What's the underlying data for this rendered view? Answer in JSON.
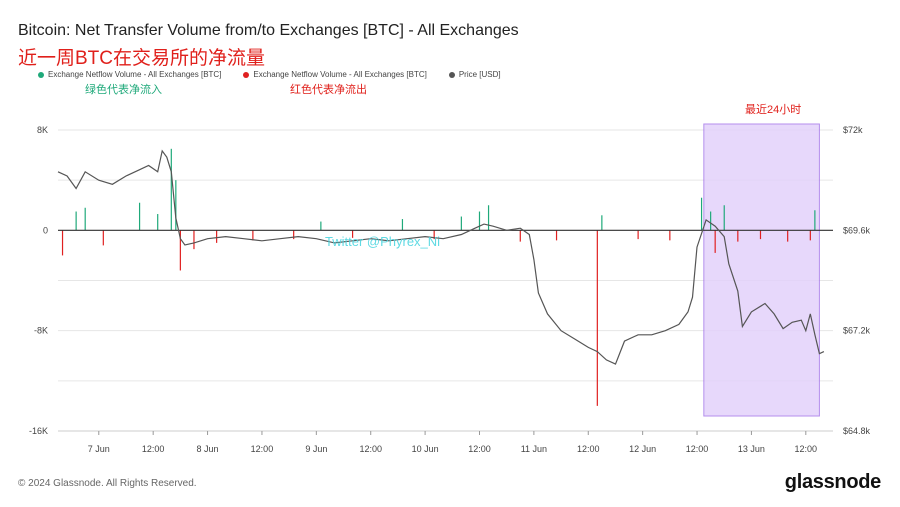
{
  "header": {
    "title": "Bitcoin: Net Transfer Volume from/to Exchanges [BTC] - All Exchanges",
    "subtitle": "近一周BTC在交易所的净流量"
  },
  "legend": [
    {
      "label": "Exchange Netflow Volume - All Exchanges [BTC]",
      "color": "#1fa97a"
    },
    {
      "label": "Exchange Netflow Volume - All Exchanges [BTC]",
      "color": "#e02020"
    },
    {
      "label": "Price [USD]",
      "color": "#555555"
    }
  ],
  "annotations": {
    "green_note": "绿色代表净流入",
    "red_note": "红色代表净流出",
    "highlight_note": "最近24小时",
    "watermark": "Twitter @Phyrex_Ni"
  },
  "footer": {
    "copyright": "© 2024 Glassnode. All Rights Reserved.",
    "brand": "glassnode"
  },
  "colors": {
    "inflow": "#1fa97a",
    "outflow": "#e02020",
    "price": "#555555",
    "highlight": "#e3d2fb",
    "highlight_border": "#a77bea"
  },
  "chart_data": {
    "type": "bar",
    "x_ticks": [
      "7 Jun",
      "12:00",
      "8 Jun",
      "12:00",
      "9 Jun",
      "12:00",
      "10 Jun",
      "12:00",
      "11 Jun",
      "12:00",
      "12 Jun",
      "12:00",
      "13 Jun",
      "12:00"
    ],
    "x_tick_hours": [
      24,
      36,
      48,
      60,
      72,
      84,
      96,
      108,
      120,
      132,
      144,
      156,
      168,
      180
    ],
    "x_range_hours": [
      15,
      186
    ],
    "y_left": {
      "range": [
        -16000,
        8000
      ],
      "ticks": [
        8000,
        0,
        -8000,
        -16000
      ],
      "tick_labels": [
        "8K",
        "0",
        "-8K",
        "-16K"
      ]
    },
    "y_right": {
      "range": [
        64800,
        72000
      ],
      "ticks": [
        72000,
        69600,
        67200,
        64800
      ],
      "tick_labels": [
        "$72k",
        "$69.6k",
        "$67.2k",
        "$64.8k"
      ]
    },
    "highlight_range_hours": [
      157.5,
      183
    ],
    "netflow_spikes": [
      {
        "hour": 16,
        "value": -2000
      },
      {
        "hour": 19,
        "value": 1500
      },
      {
        "hour": 21,
        "value": 1800
      },
      {
        "hour": 25,
        "value": -1200
      },
      {
        "hour": 33,
        "value": 2200
      },
      {
        "hour": 37,
        "value": 1300
      },
      {
        "hour": 40,
        "value": 6500
      },
      {
        "hour": 41,
        "value": 4000
      },
      {
        "hour": 42,
        "value": -3200
      },
      {
        "hour": 45,
        "value": -1500
      },
      {
        "hour": 50,
        "value": -1000
      },
      {
        "hour": 58,
        "value": -800
      },
      {
        "hour": 67,
        "value": -700
      },
      {
        "hour": 73,
        "value": 700
      },
      {
        "hour": 80,
        "value": -600
      },
      {
        "hour": 91,
        "value": 900
      },
      {
        "hour": 98,
        "value": -700
      },
      {
        "hour": 104,
        "value": 1100
      },
      {
        "hour": 108,
        "value": 1500
      },
      {
        "hour": 110,
        "value": 2000
      },
      {
        "hour": 117,
        "value": -900
      },
      {
        "hour": 125,
        "value": -800
      },
      {
        "hour": 134,
        "value": -14000
      },
      {
        "hour": 135,
        "value": 1200
      },
      {
        "hour": 143,
        "value": -700
      },
      {
        "hour": 150,
        "value": -800
      },
      {
        "hour": 157,
        "value": 2600
      },
      {
        "hour": 159,
        "value": 1500
      },
      {
        "hour": 160,
        "value": -1800
      },
      {
        "hour": 162,
        "value": 2000
      },
      {
        "hour": 165,
        "value": -900
      },
      {
        "hour": 170,
        "value": -700
      },
      {
        "hour": 176,
        "value": -900
      },
      {
        "hour": 181,
        "value": -800
      },
      {
        "hour": 182,
        "value": 1600
      }
    ],
    "price_series": [
      {
        "hour": 15,
        "value": 71000
      },
      {
        "hour": 17,
        "value": 70900
      },
      {
        "hour": 19,
        "value": 70600
      },
      {
        "hour": 21,
        "value": 71000
      },
      {
        "hour": 24,
        "value": 70800
      },
      {
        "hour": 27,
        "value": 70700
      },
      {
        "hour": 30,
        "value": 70900
      },
      {
        "hour": 33,
        "value": 71050
      },
      {
        "hour": 35,
        "value": 71150
      },
      {
        "hour": 37,
        "value": 71000
      },
      {
        "hour": 38,
        "value": 71500
      },
      {
        "hour": 39,
        "value": 71350
      },
      {
        "hour": 40,
        "value": 71000
      },
      {
        "hour": 41,
        "value": 69900
      },
      {
        "hour": 42,
        "value": 69400
      },
      {
        "hour": 43,
        "value": 69250
      },
      {
        "hour": 45,
        "value": 69300
      },
      {
        "hour": 48,
        "value": 69400
      },
      {
        "hour": 52,
        "value": 69450
      },
      {
        "hour": 56,
        "value": 69400
      },
      {
        "hour": 60,
        "value": 69350
      },
      {
        "hour": 64,
        "value": 69400
      },
      {
        "hour": 68,
        "value": 69450
      },
      {
        "hour": 72,
        "value": 69400
      },
      {
        "hour": 76,
        "value": 69300
      },
      {
        "hour": 80,
        "value": 69350
      },
      {
        "hour": 84,
        "value": 69400
      },
      {
        "hour": 88,
        "value": 69350
      },
      {
        "hour": 92,
        "value": 69400
      },
      {
        "hour": 96,
        "value": 69450
      },
      {
        "hour": 100,
        "value": 69400
      },
      {
        "hour": 104,
        "value": 69500
      },
      {
        "hour": 107,
        "value": 69650
      },
      {
        "hour": 109,
        "value": 69750
      },
      {
        "hour": 111,
        "value": 69700
      },
      {
        "hour": 114,
        "value": 69600
      },
      {
        "hour": 117,
        "value": 69650
      },
      {
        "hour": 119,
        "value": 69500
      },
      {
        "hour": 120,
        "value": 68900
      },
      {
        "hour": 121,
        "value": 68100
      },
      {
        "hour": 123,
        "value": 67600
      },
      {
        "hour": 126,
        "value": 67200
      },
      {
        "hour": 129,
        "value": 67000
      },
      {
        "hour": 132,
        "value": 66800
      },
      {
        "hour": 134,
        "value": 66700
      },
      {
        "hour": 136,
        "value": 66500
      },
      {
        "hour": 138,
        "value": 66400
      },
      {
        "hour": 140,
        "value": 66950
      },
      {
        "hour": 143,
        "value": 67100
      },
      {
        "hour": 146,
        "value": 67100
      },
      {
        "hour": 149,
        "value": 67200
      },
      {
        "hour": 152,
        "value": 67350
      },
      {
        "hour": 154,
        "value": 67650
      },
      {
        "hour": 155,
        "value": 68000
      },
      {
        "hour": 156,
        "value": 69200
      },
      {
        "hour": 158,
        "value": 69850
      },
      {
        "hour": 160,
        "value": 69700
      },
      {
        "hour": 162,
        "value": 69450
      },
      {
        "hour": 163,
        "value": 68800
      },
      {
        "hour": 165,
        "value": 68150
      },
      {
        "hour": 166,
        "value": 67300
      },
      {
        "hour": 168,
        "value": 67650
      },
      {
        "hour": 171,
        "value": 67850
      },
      {
        "hour": 173,
        "value": 67600
      },
      {
        "hour": 175,
        "value": 67250
      },
      {
        "hour": 177,
        "value": 67400
      },
      {
        "hour": 179,
        "value": 67450
      },
      {
        "hour": 180,
        "value": 67200
      },
      {
        "hour": 181,
        "value": 67600
      },
      {
        "hour": 182,
        "value": 67100
      },
      {
        "hour": 183,
        "value": 66650
      },
      {
        "hour": 184,
        "value": 66700
      }
    ]
  }
}
